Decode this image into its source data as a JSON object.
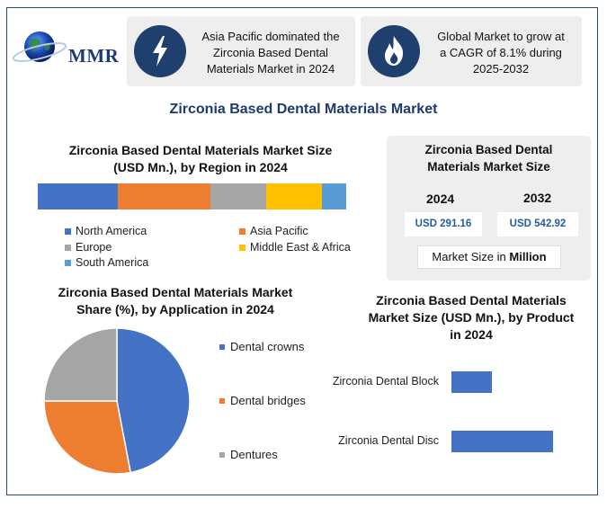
{
  "logo": {
    "text": "MMR"
  },
  "info_cards": [
    {
      "icon": "lightning-icon",
      "text_lines": [
        "Asia Pacific dominated the",
        "Zirconia Based Dental",
        "Materials Market in 2024"
      ]
    },
    {
      "icon": "flame-icon",
      "text_lines": [
        "Global Market to grow at",
        "a CAGR of 8.1% during",
        "2025-2032"
      ]
    }
  ],
  "main_title": "Zirconia Based Dental Materials Market",
  "region_section": {
    "title_lines": [
      "Zirconia Based Dental Materials Market Size",
      "(USD Mn.), by Region in 2024"
    ]
  },
  "size_card": {
    "title_lines": [
      "Zirconia Based Dental",
      "Materials Market Size"
    ],
    "year_2024": "2024",
    "year_2032": "2032",
    "value_2024": "USD 291.16",
    "value_2032": "USD 542.92",
    "unit_prefix": "Market Size in",
    "unit_bold": "Million"
  },
  "application_section": {
    "title_lines": [
      "Zirconia Based Dental Materials Market",
      "Share (%), by Application in 2024"
    ]
  },
  "product_section": {
    "title_lines": [
      "Zirconia Based Dental Materials",
      "Market Size (USD Mn.), by Product",
      "in 2024"
    ]
  },
  "colors": {
    "blue": "#4472c4",
    "orange": "#ed7d31",
    "gray": "#a5a5a5",
    "yellow": "#ffc000",
    "light_blue": "#5b9bd5",
    "navy": "#1f3f6e"
  },
  "chart_data": [
    {
      "type": "bar",
      "orientation": "stacked-horizontal",
      "categories": [
        "North America",
        "Asia Pacific",
        "Europe",
        "Middle East & Africa",
        "South America"
      ],
      "values": [
        26,
        30,
        18,
        18,
        8
      ],
      "colors": [
        "#4472c4",
        "#ed7d31",
        "#a5a5a5",
        "#ffc000",
        "#5b9bd5"
      ],
      "legend": "bottom"
    },
    {
      "type": "pie",
      "categories": [
        "Dental crowns",
        "Dental bridges",
        "Dentures"
      ],
      "values": [
        47,
        28,
        25
      ],
      "colors": [
        "#4472c4",
        "#ed7d31",
        "#a5a5a5"
      ],
      "legend": "right"
    },
    {
      "type": "bar",
      "orientation": "horizontal",
      "categories": [
        "Zirconia Dental Block",
        "Zirconia Dental Disc"
      ],
      "values": [
        40,
        100
      ],
      "xlim": [
        0,
        100
      ],
      "colors": [
        "#4472c4",
        "#4472c4"
      ]
    }
  ]
}
